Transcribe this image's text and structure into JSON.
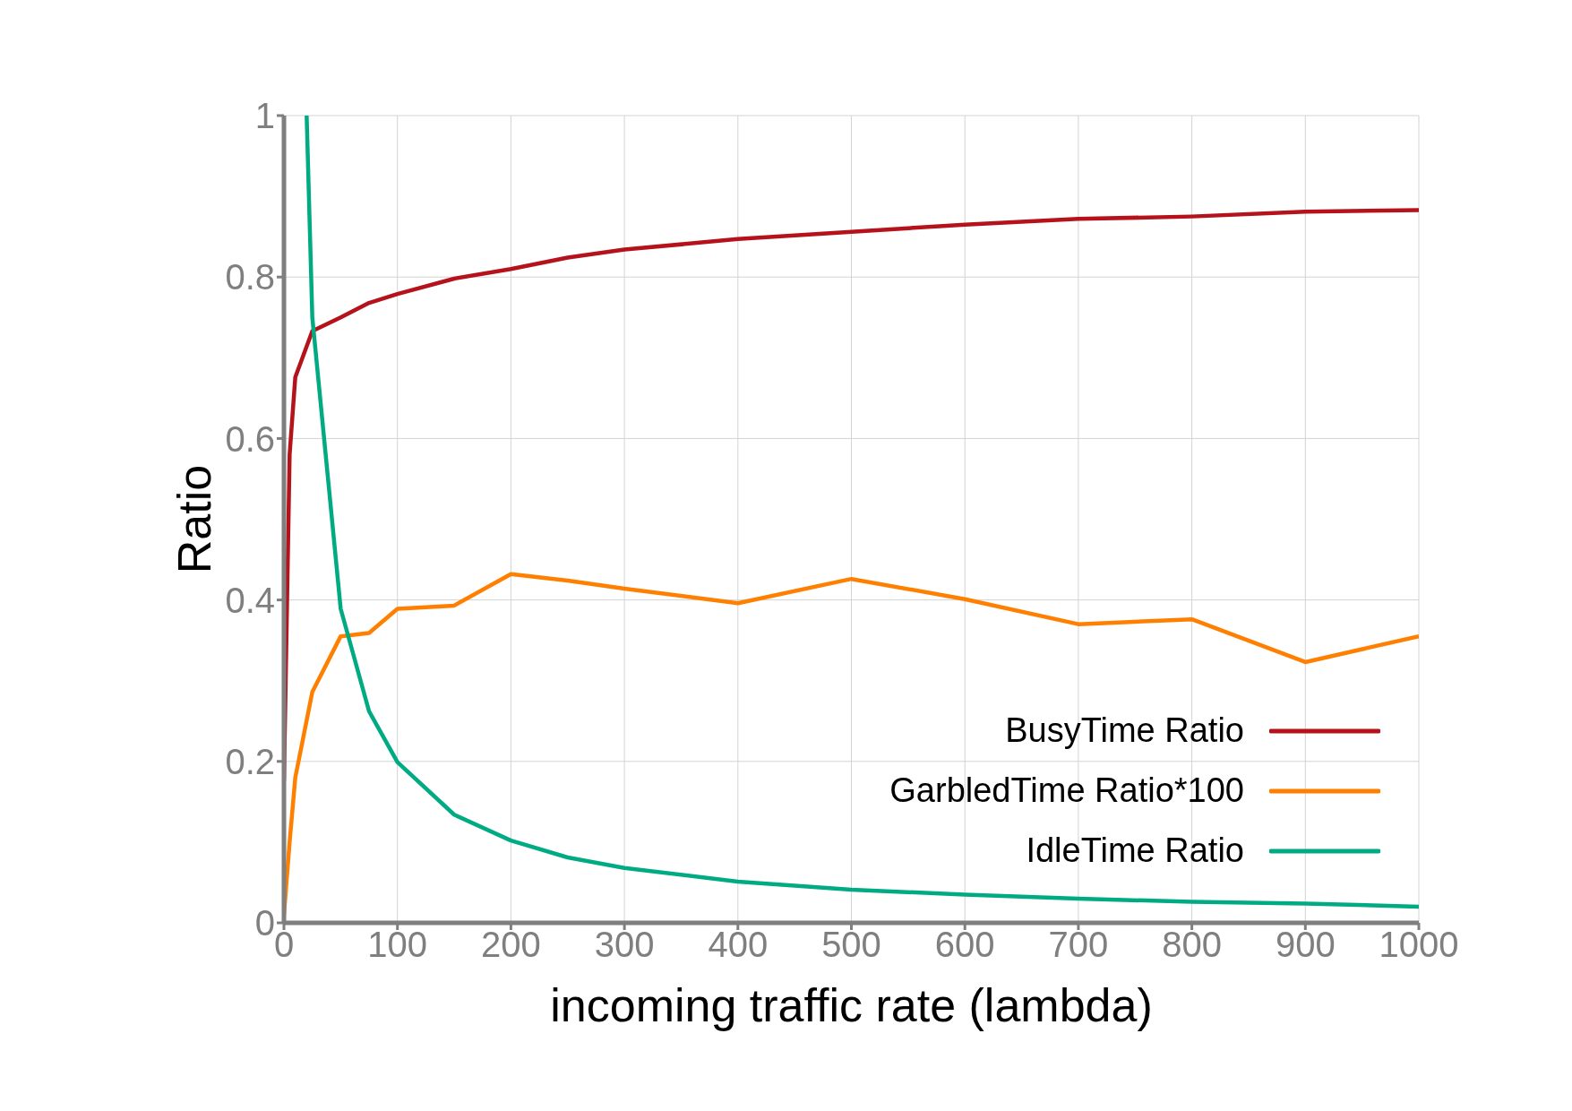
{
  "chart_data": {
    "type": "line",
    "xlabel": "incoming traffic rate (lambda)",
    "ylabel": "Ratio",
    "xlim": [
      0,
      1000
    ],
    "xticks": [
      0,
      100,
      200,
      300,
      400,
      500,
      600,
      700,
      800,
      900,
      1000
    ],
    "ylim": [
      0,
      1
    ],
    "yticks": [
      0,
      0.2,
      0.4,
      0.6,
      0.8,
      1
    ],
    "grid": true,
    "legend": "bottom right",
    "marker": "none",
    "line_style": "solid",
    "series": [
      {
        "name": "BusyTime Ratio",
        "color": "#b5121b",
        "x": [
          0,
          5,
          10,
          25,
          50,
          75,
          100,
          150,
          200,
          250,
          300,
          400,
          500,
          600,
          700,
          800,
          900,
          1000
        ],
        "values": [
          0.176,
          0.58,
          0.676,
          0.733,
          0.75,
          0.768,
          0.779,
          0.798,
          0.81,
          0.824,
          0.834,
          0.847,
          0.856,
          0.865,
          0.872,
          0.875,
          0.881,
          0.883
        ]
      },
      {
        "name": "GarbledTime Ratio*100",
        "color": "#ff7f00",
        "x": [
          0,
          5,
          10,
          25,
          50,
          75,
          100,
          150,
          200,
          250,
          300,
          400,
          500,
          600,
          700,
          800,
          900,
          1000
        ],
        "values": [
          0.01,
          0.1,
          0.18,
          0.286,
          0.355,
          0.359,
          0.389,
          0.393,
          0.432,
          0.424,
          0.414,
          0.396,
          0.426,
          0.401,
          0.37,
          0.376,
          0.323,
          0.355
        ]
      },
      {
        "name": "IdleTime Ratio",
        "color": "#00ab84",
        "x": [
          20,
          25,
          50,
          75,
          100,
          150,
          200,
          250,
          300,
          400,
          500,
          600,
          700,
          800,
          900,
          1000
        ],
        "values": [
          1.0,
          0.75,
          0.389,
          0.262,
          0.199,
          0.134,
          0.102,
          0.081,
          0.068,
          0.051,
          0.041,
          0.035,
          0.03,
          0.026,
          0.024,
          0.02
        ]
      }
    ]
  }
}
